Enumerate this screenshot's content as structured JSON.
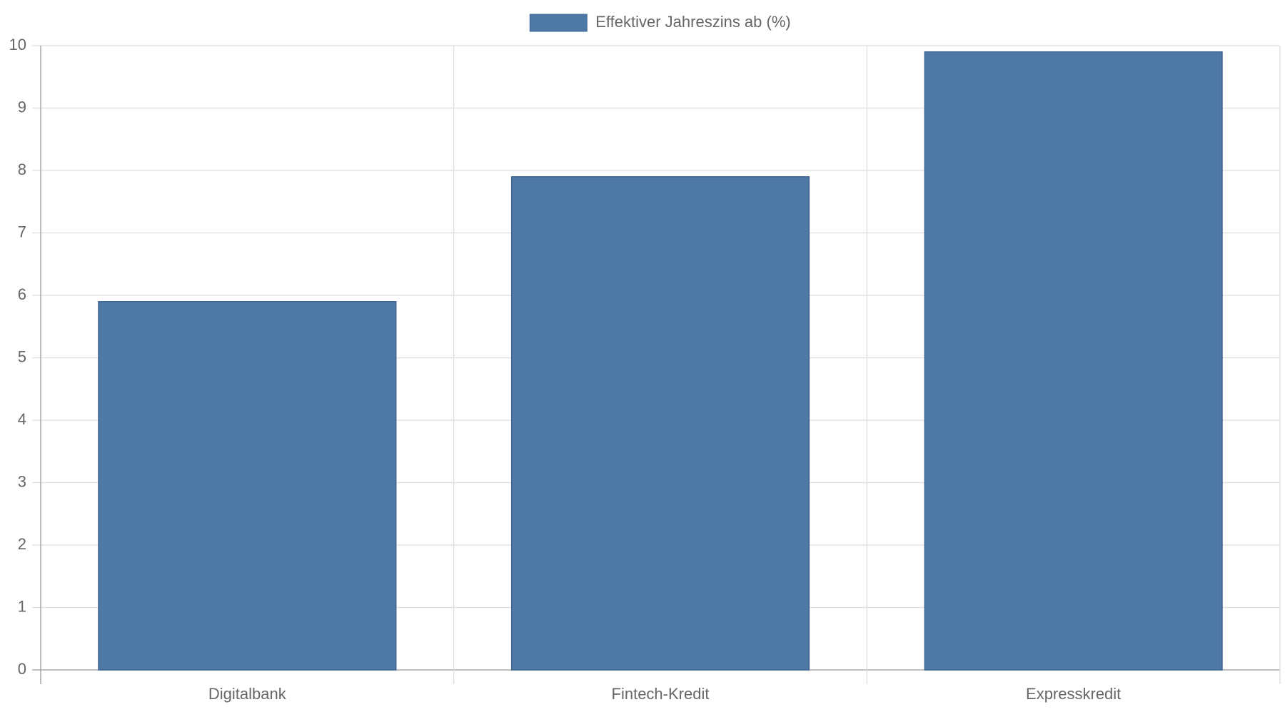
{
  "chart_data": {
    "type": "bar",
    "categories": [
      "Digitalbank",
      "Fintech-Kredit",
      "Expresskredit"
    ],
    "series": [
      {
        "name": "Effektiver Jahreszins ab (%)",
        "color": "#4e79a7",
        "values": [
          5.9,
          7.9,
          9.9
        ]
      }
    ],
    "ylim": [
      0,
      10
    ],
    "yticks": [
      0,
      1,
      2,
      3,
      4,
      5,
      6,
      7,
      8,
      9,
      10
    ],
    "grid": true,
    "legend": "top"
  }
}
